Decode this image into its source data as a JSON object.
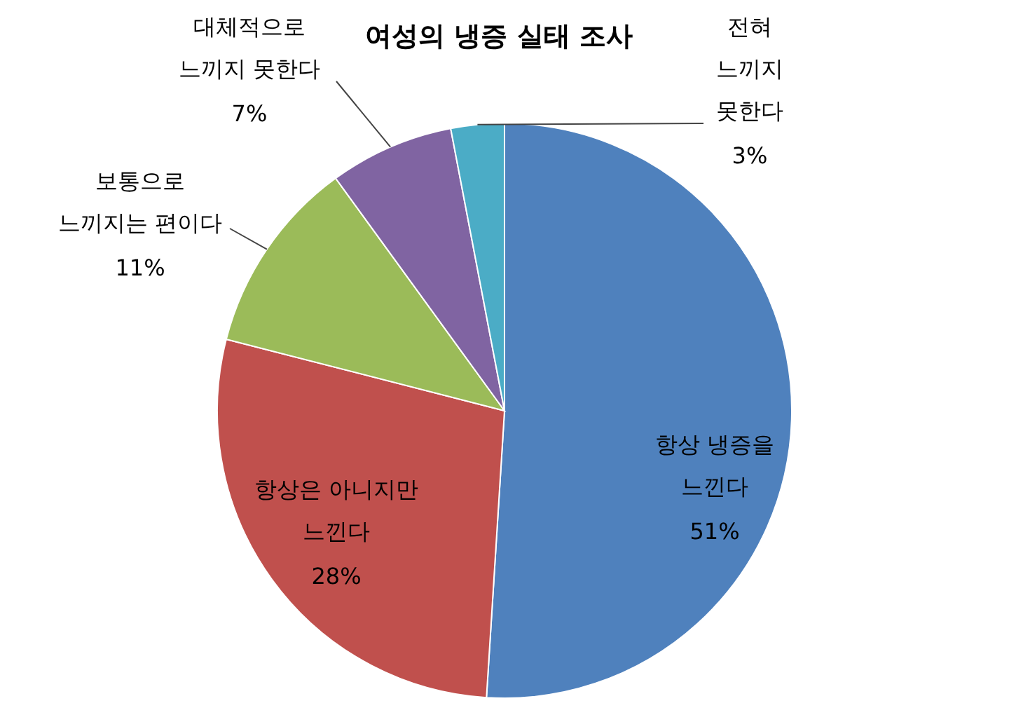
{
  "chart_data": {
    "type": "pie",
    "title": "여성의 냉증 실태 조사",
    "categories": [
      "항상 냉증을 느낀다",
      "항상은 아니지만 느낀다",
      "보통으로 느끼지는 편이다",
      "대체적으로 느끼지 못한다",
      "전혀 느끼지 못한다"
    ],
    "values": [
      51,
      28,
      11,
      7,
      3
    ],
    "colors": [
      "#4f81bd",
      "#c0504d",
      "#9bbb59",
      "#8064a2",
      "#4bacc6"
    ],
    "value_labels": [
      "51%",
      "28%",
      "11%",
      "7%",
      "3%"
    ]
  }
}
